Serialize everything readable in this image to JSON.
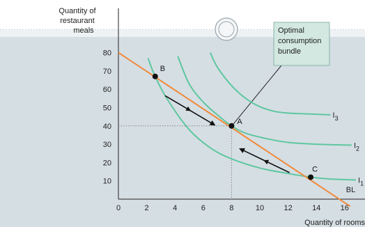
{
  "chart_data": {
    "type": "line",
    "title": "",
    "xlabel": "Quantity of rooms",
    "ylabel": "Quantity of restaurant meals",
    "ylabel_lines": [
      "Quantity of",
      "restaurant",
      "meals"
    ],
    "xlim": [
      0,
      16
    ],
    "ylim": [
      0,
      80
    ],
    "x_ticks": [
      0,
      2,
      4,
      6,
      8,
      10,
      12,
      14,
      16
    ],
    "y_ticks": [
      10,
      20,
      30,
      40,
      50,
      60,
      70,
      80
    ],
    "grid": false,
    "colors": {
      "budget_line": "#f08a3c",
      "indifference": "#5ec7a0",
      "plot_background": "#d5dee3",
      "strip": "#eef2f4",
      "point": "#111111",
      "arrow": "#111111",
      "guide": "#888888"
    },
    "budget_line": {
      "name": "BL",
      "x": [
        0,
        16
      ],
      "y": [
        80,
        0
      ]
    },
    "indifference_curves": [
      {
        "name": "I",
        "subscript": "1",
        "x": [
          2.1,
          2.6,
          3.5,
          5,
          6.5,
          8,
          10,
          12,
          13.6,
          15,
          16.8
        ],
        "y": [
          77,
          67,
          54,
          38,
          28,
          22,
          17,
          14,
          12,
          11,
          10.5
        ]
      },
      {
        "name": "I",
        "subscript": "2",
        "x": [
          4.2,
          5,
          6,
          7,
          8,
          9,
          10.5,
          12,
          14,
          16.5
        ],
        "y": [
          78,
          63,
          53,
          46,
          40,
          36,
          33,
          31,
          30,
          29.5
        ]
      },
      {
        "name": "I",
        "subscript": "3",
        "x": [
          6.5,
          7,
          8,
          9,
          10,
          11,
          12,
          13.5,
          15
        ],
        "y": [
          80,
          72,
          62,
          55,
          50.5,
          48,
          47,
          46.5,
          46
        ]
      }
    ],
    "points": [
      {
        "label": "A",
        "x": 8,
        "y": 40
      },
      {
        "label": "B",
        "x": 2.6,
        "y": 67
      },
      {
        "label": "C",
        "x": 13.6,
        "y": 12
      }
    ],
    "movement_arrows": [
      {
        "from": [
          3.3,
          56.5
        ],
        "to": [
          6.8,
          40.5
        ]
      },
      {
        "from": [
          12.1,
          14.5
        ],
        "to": [
          8.6,
          27.5
        ]
      }
    ],
    "annotation": {
      "lines": [
        "Optimal",
        "consumption",
        "bundle"
      ],
      "points_to": "A"
    }
  }
}
